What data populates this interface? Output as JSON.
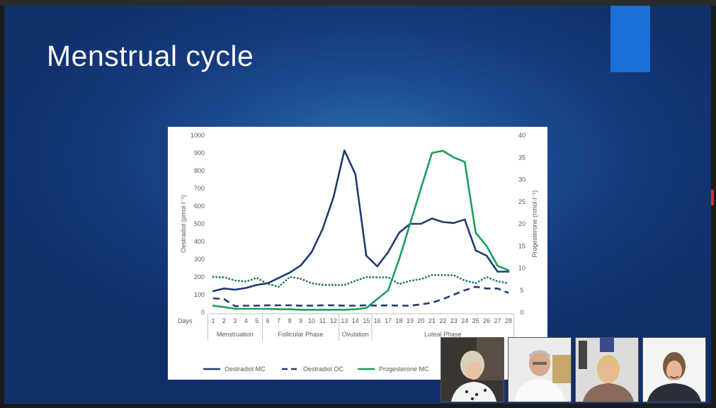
{
  "slide": {
    "title": "Menstrual cycle",
    "accent_color": "#1c6fd6"
  },
  "chart_data": {
    "type": "line",
    "xlabel": "Days",
    "ylabel": "Oestradiol (pmol·l⁻¹)",
    "y2label": "Progesterone (nmol·l⁻¹)",
    "ylim": [
      0,
      1000
    ],
    "y2lim": [
      0,
      40
    ],
    "yticks": [
      0,
      100,
      200,
      300,
      400,
      500,
      600,
      700,
      800,
      900,
      1000
    ],
    "y2ticks": [
      0,
      5,
      10,
      15,
      20,
      25,
      30,
      35,
      40
    ],
    "x": [
      1,
      2,
      3,
      4,
      5,
      6,
      7,
      8,
      9,
      10,
      11,
      12,
      13,
      14,
      15,
      16,
      17,
      18,
      19,
      20,
      21,
      22,
      23,
      24,
      25,
      26,
      27,
      28
    ],
    "phases": [
      {
        "label": "Menstruation",
        "from": 1,
        "to": 5
      },
      {
        "label": "Follicular Phase",
        "from": 6,
        "to": 12
      },
      {
        "label": "Ovulation",
        "from": 13,
        "to": 15
      },
      {
        "label": "Luteal Phase",
        "from": 16,
        "to": 28
      }
    ],
    "legend_position": "bottom",
    "grid": false,
    "series": [
      {
        "name": "Oestradiol MC",
        "axis": "left",
        "style": "solid",
        "color": "#1f3b6e",
        "values": [
          120,
          135,
          128,
          138,
          155,
          165,
          195,
          225,
          265,
          340,
          470,
          650,
          915,
          780,
          320,
          260,
          340,
          450,
          500,
          500,
          530,
          510,
          505,
          525,
          350,
          320,
          230,
          230
        ]
      },
      {
        "name": "Oestradiol OC",
        "axis": "left",
        "style": "dashed",
        "color": "#1f3b6e",
        "values": [
          80,
          75,
          35,
          38,
          38,
          40,
          40,
          40,
          38,
          38,
          40,
          40,
          38,
          38,
          40,
          38,
          40,
          38,
          38,
          45,
          55,
          75,
          100,
          125,
          145,
          135,
          135,
          110
        ]
      },
      {
        "name": "Oestradiol",
        "axis": "left",
        "style": "dotted",
        "color": "#1a7a5a",
        "values": [
          200,
          198,
          180,
          175,
          195,
          160,
          145,
          200,
          190,
          165,
          155,
          155,
          155,
          178,
          200,
          198,
          198,
          160,
          178,
          188,
          210,
          210,
          210,
          180,
          165,
          200,
          175,
          165
        ]
      },
      {
        "name": "Progesterone MC",
        "axis": "right",
        "style": "solid",
        "color": "#1a9e5c",
        "values": [
          1.5,
          1.2,
          0.8,
          0.8,
          0.8,
          0.8,
          0.7,
          0.7,
          0.6,
          0.6,
          0.6,
          0.6,
          0.6,
          0.7,
          1.0,
          3.0,
          5.0,
          12.0,
          20.0,
          28.0,
          36.0,
          36.5,
          35.0,
          34.0,
          18.0,
          15.0,
          10.5,
          9.5
        ]
      }
    ]
  },
  "video_tiles": [
    {
      "label": "participant-1",
      "bg": "#2a2a2a"
    },
    {
      "label": "participant-2",
      "bg": "#e8e8e8"
    },
    {
      "label": "participant-3",
      "bg": "#d9d9d9"
    },
    {
      "label": "participant-4",
      "bg": "#f2f2f2"
    }
  ]
}
